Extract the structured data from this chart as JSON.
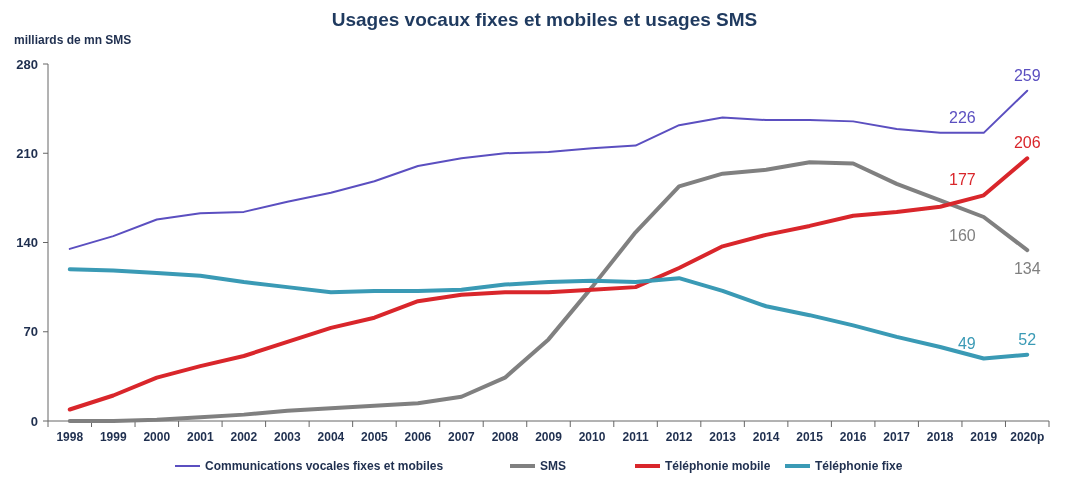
{
  "chart_data": {
    "type": "line",
    "title": "Usages vocaux fixes et mobiles et usages SMS",
    "ylabel": "milliards de mn SMS",
    "categories": [
      "1998",
      "1999",
      "2000",
      "2001",
      "2002",
      "2003",
      "2004",
      "2005",
      "2006",
      "2007",
      "2008",
      "2009",
      "2010",
      "2011",
      "2012",
      "2013",
      "2014",
      "2015",
      "2016",
      "2017",
      "2018",
      "2019",
      "2020p"
    ],
    "ylim": [
      0,
      280
    ],
    "yticks": [
      0,
      70,
      140,
      210,
      280
    ],
    "grid": false,
    "legend": "bottom",
    "marker": "none",
    "line_style": "solid",
    "series": [
      {
        "name": "Communications vocales fixes et mobiles",
        "color": "#5b4fc0",
        "values": [
          135,
          145,
          158,
          163,
          164,
          172,
          179,
          188,
          200,
          206,
          210,
          211,
          214,
          216,
          232,
          238,
          236,
          236,
          235,
          229,
          226,
          226,
          259
        ],
        "value_labels": [
          null,
          null,
          null,
          null,
          null,
          null,
          null,
          null,
          null,
          null,
          null,
          null,
          null,
          null,
          null,
          null,
          null,
          null,
          null,
          null,
          null,
          "226",
          "259"
        ]
      },
      {
        "name": "SMS",
        "color": "#808080",
        "values": [
          0,
          0,
          1,
          3,
          5,
          8,
          10,
          12,
          14,
          19,
          34,
          64,
          105,
          148,
          184,
          194,
          197,
          203,
          202,
          186,
          173,
          160,
          134
        ],
        "value_labels": [
          null,
          null,
          null,
          null,
          null,
          null,
          null,
          null,
          null,
          null,
          null,
          null,
          null,
          null,
          null,
          null,
          null,
          null,
          null,
          null,
          null,
          "160",
          "134"
        ]
      },
      {
        "name": "Téléphonie mobile",
        "color": "#d9262b",
        "values": [
          9,
          20,
          34,
          43,
          51,
          62,
          73,
          81,
          94,
          99,
          101,
          101,
          103,
          105,
          120,
          137,
          146,
          153,
          161,
          164,
          168,
          177,
          206
        ],
        "value_labels": [
          null,
          null,
          null,
          null,
          null,
          null,
          null,
          null,
          null,
          null,
          null,
          null,
          null,
          null,
          null,
          null,
          null,
          null,
          null,
          null,
          null,
          "177",
          "206"
        ]
      },
      {
        "name": "Téléphonie fixe",
        "color": "#3a9ab5",
        "values": [
          119,
          118,
          116,
          114,
          109,
          105,
          101,
          102,
          102,
          103,
          107,
          109,
          110,
          109,
          112,
          102,
          90,
          83,
          75,
          66,
          58,
          49,
          52
        ],
        "value_labels": [
          null,
          null,
          null,
          null,
          null,
          null,
          null,
          null,
          null,
          null,
          null,
          null,
          null,
          null,
          null,
          null,
          null,
          null,
          null,
          null,
          null,
          "49",
          "52"
        ]
      }
    ]
  }
}
